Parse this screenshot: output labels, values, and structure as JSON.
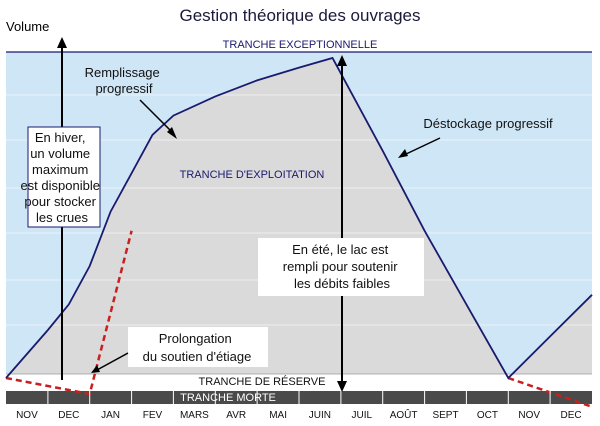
{
  "title": "Gestion théorique des ouvrages",
  "ylabel": "Volume",
  "bands": {
    "exceptionnelle": "TRANCHE EXCEPTIONNELLE",
    "exploitation": "TRANCHE D'EXPLOITATION",
    "reserve": "TRANCHE DE RÉSERVE",
    "morte": "TRANCHE MORTE"
  },
  "annotations": {
    "remplissage": [
      "Remplissage",
      "progressif"
    ],
    "destockage": "Déstockage progressif",
    "hiver": [
      "En hiver,",
      "un volume",
      "maximum",
      "est disponible",
      "pour stocker",
      "les crues"
    ],
    "ete": [
      "En été, le lac est",
      "rempli pour soutenir",
      "les débits faibles"
    ],
    "prolongation": [
      "Prolongation",
      "du soutien d'étiage"
    ]
  },
  "colors": {
    "sky": "#cfe6f6",
    "volume_fill": "#dadada",
    "curve": "#1a1a6e",
    "dashed": "#c8201e",
    "axis_bar": "#4a4a4a",
    "title": "#1a1a3a"
  },
  "chart_data": {
    "type": "area",
    "categories": [
      "NOV",
      "DEC",
      "JAN",
      "FEV",
      "MARS",
      "AVR",
      "MAI",
      "JUIN",
      "JUIL",
      "AOÛT",
      "SEPT",
      "OCT",
      "NOV",
      "DEC"
    ],
    "series": [
      {
        "values": [
          {
            "x": 0.0,
            "y": 0.0
          },
          {
            "x": 1.0,
            "y": 0.15
          },
          {
            "x": 1.5,
            "y": 0.23
          },
          {
            "x": 2.0,
            "y": 0.35
          },
          {
            "x": 2.5,
            "y": 0.52
          },
          {
            "x": 3.0,
            "y": 0.64
          },
          {
            "x": 3.5,
            "y": 0.76
          },
          {
            "x": 4.0,
            "y": 0.82
          },
          {
            "x": 5.0,
            "y": 0.88
          },
          {
            "x": 6.0,
            "y": 0.93
          },
          {
            "x": 7.0,
            "y": 0.97
          },
          {
            "x": 7.8,
            "y": 1.0
          },
          {
            "x": 9.0,
            "y": 0.71
          },
          {
            "x": 10.0,
            "y": 0.46
          },
          {
            "x": 11.0,
            "y": 0.23
          },
          {
            "x": 12.0,
            "y": 0.0
          },
          {
            "x": 13.0,
            "y": 0.13
          },
          {
            "x": 14.0,
            "y": 0.26
          }
        ]
      },
      {
        "dashed": true,
        "values": [
          {
            "x": 0.0,
            "y": 0.0
          },
          {
            "x": 2.0,
            "y": -0.05
          },
          {
            "x": 3.0,
            "y": 0.46
          }
        ]
      },
      {
        "dashed": true,
        "values": [
          {
            "x": 12.0,
            "y": 0.0
          },
          {
            "x": 14.0,
            "y": -0.09
          }
        ]
      }
    ]
  }
}
